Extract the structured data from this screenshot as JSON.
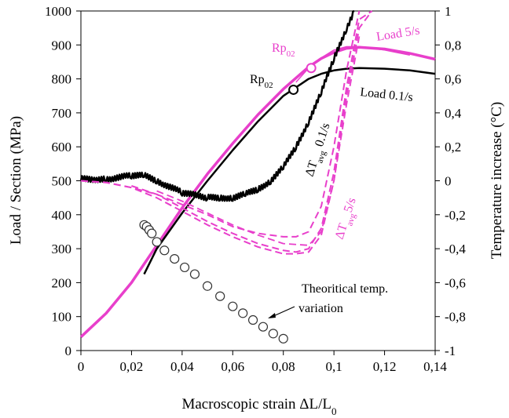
{
  "chart_data": {
    "type": "line",
    "xlabel": "Macroscopic strain ΔL/L",
    "xlabel_sub": "0",
    "ylabel_left": "Load / Section (MPa)",
    "ylabel_right": "Temperature increase (°C)",
    "xlim": [
      0,
      0.14
    ],
    "ylim_left": [
      0,
      1000
    ],
    "ylim_right": [
      -1,
      1
    ],
    "x_ticks": [
      0,
      0.02,
      0.04,
      0.06,
      0.08,
      0.1,
      0.12,
      0.14
    ],
    "x_tick_labels": [
      "0",
      "0,02",
      "0,04",
      "0,06",
      "0,08",
      "0,1",
      "0,12",
      "0,14"
    ],
    "y_left_ticks": [
      0,
      100,
      200,
      300,
      400,
      500,
      600,
      700,
      800,
      900,
      1000
    ],
    "y_left_tick_labels": [
      "0",
      "100",
      "200",
      "300",
      "400",
      "500",
      "600",
      "700",
      "800",
      "900",
      "1000"
    ],
    "y_right_ticks": [
      -1,
      -0.8,
      -0.6,
      -0.4,
      -0.2,
      0,
      0.2,
      0.4,
      0.6,
      0.8,
      1
    ],
    "y_right_tick_labels": [
      "-1",
      "-0,8",
      "-0,6",
      "-0,4",
      "-0,2",
      "0",
      "0,2",
      "0,4",
      "0,6",
      "0,8",
      "1"
    ],
    "colors": {
      "magenta": "#e83fcb",
      "black": "#000000"
    },
    "series": [
      {
        "key": "load_5",
        "axis": "left",
        "color": "#e83fcb",
        "style": "solid",
        "width": 3.5,
        "x": [
          0,
          0.01,
          0.02,
          0.03,
          0.04,
          0.05,
          0.06,
          0.07,
          0.08,
          0.09,
          0.095,
          0.1,
          0.105,
          0.11,
          0.12,
          0.13,
          0.14
        ],
        "y": [
          40,
          110,
          200,
          310,
          420,
          520,
          610,
          695,
          770,
          835,
          860,
          878,
          890,
          893,
          888,
          875,
          858
        ]
      },
      {
        "key": "load_5_thin",
        "axis": "left",
        "color": "#e83fcb",
        "style": "solid",
        "width": 1.5,
        "x": [
          0.085,
          0.09,
          0.095,
          0.1,
          0.105,
          0.11,
          0.12,
          0.13
        ],
        "y": [
          790,
          832,
          862,
          885,
          895,
          895,
          885,
          870
        ]
      },
      {
        "key": "load_0_1",
        "axis": "left",
        "color": "#000000",
        "style": "solid",
        "width": 2.5,
        "x": [
          0.025,
          0.03,
          0.04,
          0.05,
          0.06,
          0.07,
          0.08,
          0.085,
          0.09,
          0.095,
          0.1,
          0.105,
          0.11,
          0.12,
          0.13,
          0.14
        ],
        "y": [
          225,
          300,
          405,
          500,
          590,
          675,
          750,
          775,
          800,
          815,
          825,
          830,
          832,
          830,
          825,
          815
        ]
      },
      {
        "key": "temp_0_1",
        "axis": "right",
        "color": "#000000",
        "style": "noisy",
        "width": 2.5,
        "x": [
          0,
          0.01,
          0.02,
          0.025,
          0.03,
          0.04,
          0.05,
          0.055,
          0.06,
          0.065,
          0.07,
          0.075,
          0.08,
          0.085,
          0.09,
          0.095,
          0.1,
          0.105,
          0.108
        ],
        "y": [
          0.01,
          0.01,
          0.03,
          0.03,
          0.0,
          -0.07,
          -0.1,
          -0.1,
          -0.1,
          -0.08,
          -0.05,
          0.0,
          0.08,
          0.2,
          0.35,
          0.52,
          0.72,
          0.9,
          1.0
        ]
      },
      {
        "key": "temp_0_1_dash",
        "axis": "right",
        "color": "#e83fcb",
        "style": "dashed",
        "width": 2,
        "x": [
          0,
          0.01,
          0.02,
          0.03,
          0.04,
          0.05,
          0.06,
          0.07,
          0.08,
          0.085,
          0.09,
          0.095,
          0.1,
          0.105,
          0.11
        ],
        "y": [
          0,
          -0.01,
          -0.04,
          -0.08,
          -0.14,
          -0.2,
          -0.27,
          -0.31,
          -0.33,
          -0.33,
          -0.3,
          -0.15,
          0.2,
          0.65,
          1.0
        ]
      },
      {
        "key": "temp_5_a",
        "axis": "right",
        "color": "#e83fcb",
        "style": "dashed",
        "width": 2,
        "x": [
          0,
          0.01,
          0.02,
          0.03,
          0.04,
          0.05,
          0.06,
          0.07,
          0.08,
          0.085,
          0.09,
          0.095,
          0.1,
          0.105,
          0.11,
          0.115
        ],
        "y": [
          0,
          -0.01,
          -0.04,
          -0.1,
          -0.18,
          -0.26,
          -0.33,
          -0.39,
          -0.43,
          -0.43,
          -0.42,
          -0.32,
          0.0,
          0.5,
          0.9,
          1.0
        ]
      },
      {
        "key": "temp_5_b",
        "axis": "right",
        "color": "#e83fcb",
        "style": "dashed",
        "width": 2,
        "x": [
          0.02,
          0.03,
          0.04,
          0.05,
          0.06,
          0.07,
          0.08,
          0.085,
          0.09,
          0.095,
          0.1,
          0.105,
          0.11,
          0.115
        ],
        "y": [
          -0.03,
          -0.08,
          -0.16,
          -0.24,
          -0.31,
          -0.37,
          -0.41,
          -0.42,
          -0.4,
          -0.28,
          0.05,
          0.55,
          0.95,
          1.0
        ]
      },
      {
        "key": "temp_5_c",
        "axis": "right",
        "color": "#e83fcb",
        "style": "dashed",
        "width": 1.8,
        "x": [
          0.03,
          0.04,
          0.05,
          0.06,
          0.07,
          0.08,
          0.09,
          0.095,
          0.1,
          0.105,
          0.11
        ],
        "y": [
          -0.06,
          -0.12,
          -0.19,
          -0.26,
          -0.32,
          -0.37,
          -0.38,
          -0.3,
          0.0,
          0.45,
          0.85
        ]
      }
    ],
    "theoretical_temp": {
      "axis": "right",
      "x": [
        0.025,
        0.026,
        0.027,
        0.028,
        0.03,
        0.033,
        0.037,
        0.041,
        0.045,
        0.05,
        0.055,
        0.06,
        0.064,
        0.068,
        0.072,
        0.076,
        0.08
      ],
      "y": [
        -0.26,
        -0.27,
        -0.29,
        -0.31,
        -0.36,
        -0.41,
        -0.46,
        -0.51,
        -0.55,
        -0.62,
        -0.68,
        -0.74,
        -0.78,
        -0.82,
        -0.86,
        -0.9,
        -0.93
      ]
    },
    "rp02_points": [
      {
        "axis": "left",
        "x": 0.091,
        "y": 832,
        "color": "#e83fcb"
      },
      {
        "axis": "left",
        "x": 0.084,
        "y": 768,
        "color": "#000000"
      }
    ],
    "annotations": {
      "load_5": "Load 5/s",
      "load_0_1": "Load 0.1/s",
      "rp02": "Rp",
      "rp02_sub": "02",
      "dt_0_1": "ΔT",
      "dt_0_1_sub": "avg",
      "dt_0_1_rate": " 0.1/s",
      "dt_5": "ΔT",
      "dt_5_sub": "avg",
      "dt_5_rate": "5/s",
      "theory_1": "Theoritical temp.",
      "theory_2": "variation"
    }
  }
}
